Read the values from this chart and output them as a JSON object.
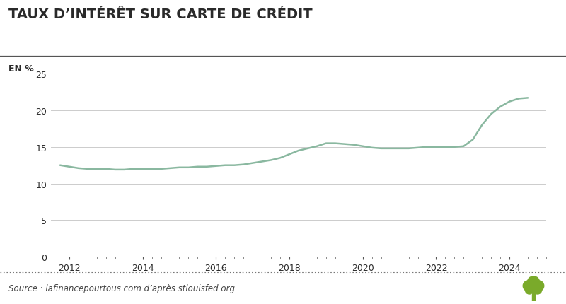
{
  "title": "TAUX D'INTÉRÊTT SUR CARTE DE CRÉDIT",
  "title_display": "TAUX D’INTÉRÊT SUR CARTE DE CRÉDIT",
  "ylabel": "EN %",
  "source": "Source : lafinancepourtous.com d’après stlouisfed.org",
  "line_color": "#8ab8a0",
  "background_color": "#ffffff",
  "ylim": [
    0,
    26
  ],
  "yticks": [
    0,
    5,
    10,
    15,
    20,
    25
  ],
  "xlim": [
    2011.5,
    2024.85
  ],
  "xticks": [
    2012,
    2014,
    2016,
    2018,
    2020,
    2022,
    2024
  ],
  "years": [
    2011.75,
    2012.0,
    2012.25,
    2012.5,
    2012.75,
    2013.0,
    2013.25,
    2013.5,
    2013.75,
    2014.0,
    2014.25,
    2014.5,
    2014.75,
    2015.0,
    2015.25,
    2015.5,
    2015.75,
    2016.0,
    2016.25,
    2016.5,
    2016.75,
    2017.0,
    2017.25,
    2017.5,
    2017.75,
    2018.0,
    2018.25,
    2018.5,
    2018.75,
    2019.0,
    2019.25,
    2019.5,
    2019.75,
    2020.0,
    2020.25,
    2020.5,
    2020.75,
    2021.0,
    2021.25,
    2021.5,
    2021.75,
    2022.0,
    2022.25,
    2022.5,
    2022.75,
    2023.0,
    2023.25,
    2023.5,
    2023.75,
    2024.0,
    2024.25,
    2024.5
  ],
  "values": [
    12.5,
    12.3,
    12.1,
    12.0,
    12.0,
    12.0,
    11.9,
    11.9,
    12.0,
    12.0,
    12.0,
    12.0,
    12.1,
    12.2,
    12.2,
    12.3,
    12.3,
    12.4,
    12.5,
    12.5,
    12.6,
    12.8,
    13.0,
    13.2,
    13.5,
    14.0,
    14.5,
    14.8,
    15.1,
    15.5,
    15.5,
    15.4,
    15.3,
    15.1,
    14.9,
    14.8,
    14.8,
    14.8,
    14.8,
    14.9,
    15.0,
    15.0,
    15.0,
    15.0,
    15.1,
    16.0,
    18.0,
    19.5,
    20.5,
    21.2,
    21.6,
    21.7
  ],
  "title_fontsize": 14,
  "axis_fontsize": 9,
  "source_fontsize": 8.5,
  "line_width": 1.8,
  "tree_color": "#7aaa2a"
}
